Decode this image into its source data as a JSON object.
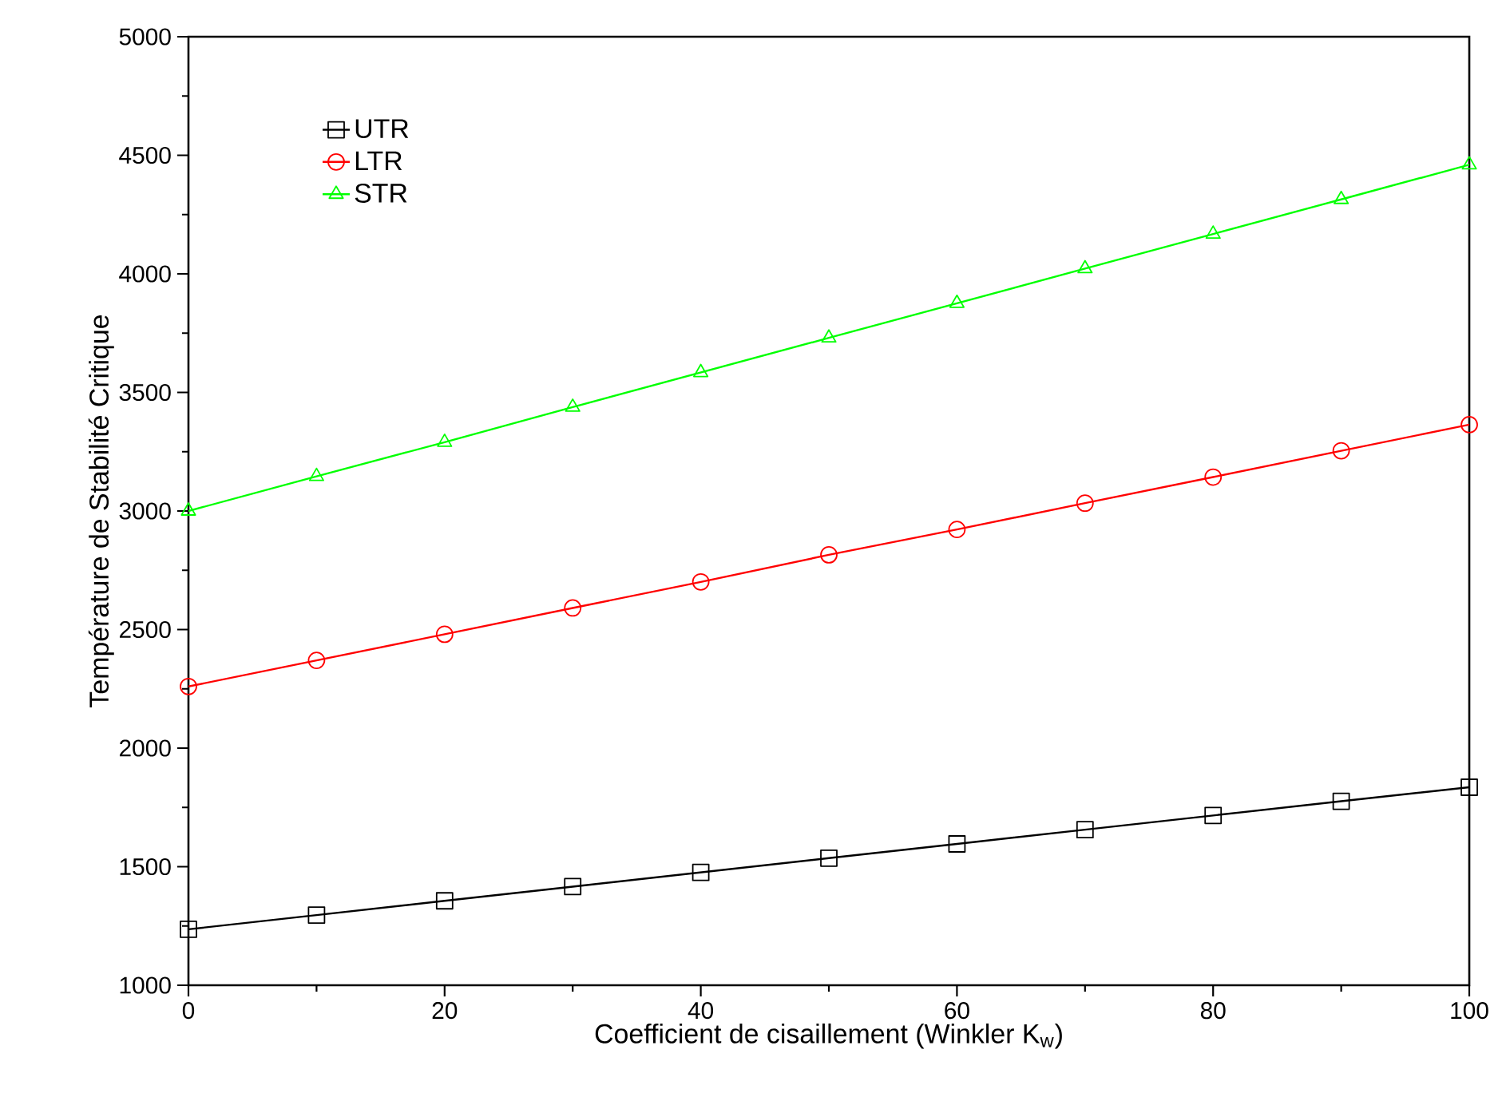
{
  "chart_data": {
    "type": "line",
    "xlabel": "Coefficient de cisaillement (Winkler  K$_{w}$)",
    "ylabel": "Température de Stabilité Critique",
    "x": [
      0,
      10,
      20,
      30,
      40,
      50,
      60,
      70,
      80,
      90,
      100
    ],
    "xlim": [
      0,
      100
    ],
    "xticks": [
      0,
      20,
      40,
      60,
      80,
      100
    ],
    "ylim": [
      1000,
      5000
    ],
    "yticks": [
      1000,
      1500,
      2000,
      2500,
      3000,
      3500,
      4000,
      4500,
      5000
    ],
    "grid": false,
    "legend": "top left",
    "line_style": "solid",
    "series": [
      {
        "name": "UTR",
        "color": "#000000",
        "marker": "square",
        "values": [
          1236,
          1296,
          1356,
          1416,
          1476,
          1536,
          1596,
          1656,
          1716,
          1776,
          1835
        ]
      },
      {
        "name": "LTR",
        "color": "#ff0000",
        "marker": "circle",
        "values": [
          2260,
          2370,
          2480,
          2591,
          2701,
          2815,
          2922,
          3033,
          3143,
          3254,
          3364
        ]
      },
      {
        "name": "STR",
        "color": "#00ff00",
        "marker": "triangle",
        "values": [
          3000,
          3146,
          3290,
          3438,
          3584,
          3730,
          3876,
          4022,
          4168,
          4314,
          4460
        ]
      }
    ]
  }
}
